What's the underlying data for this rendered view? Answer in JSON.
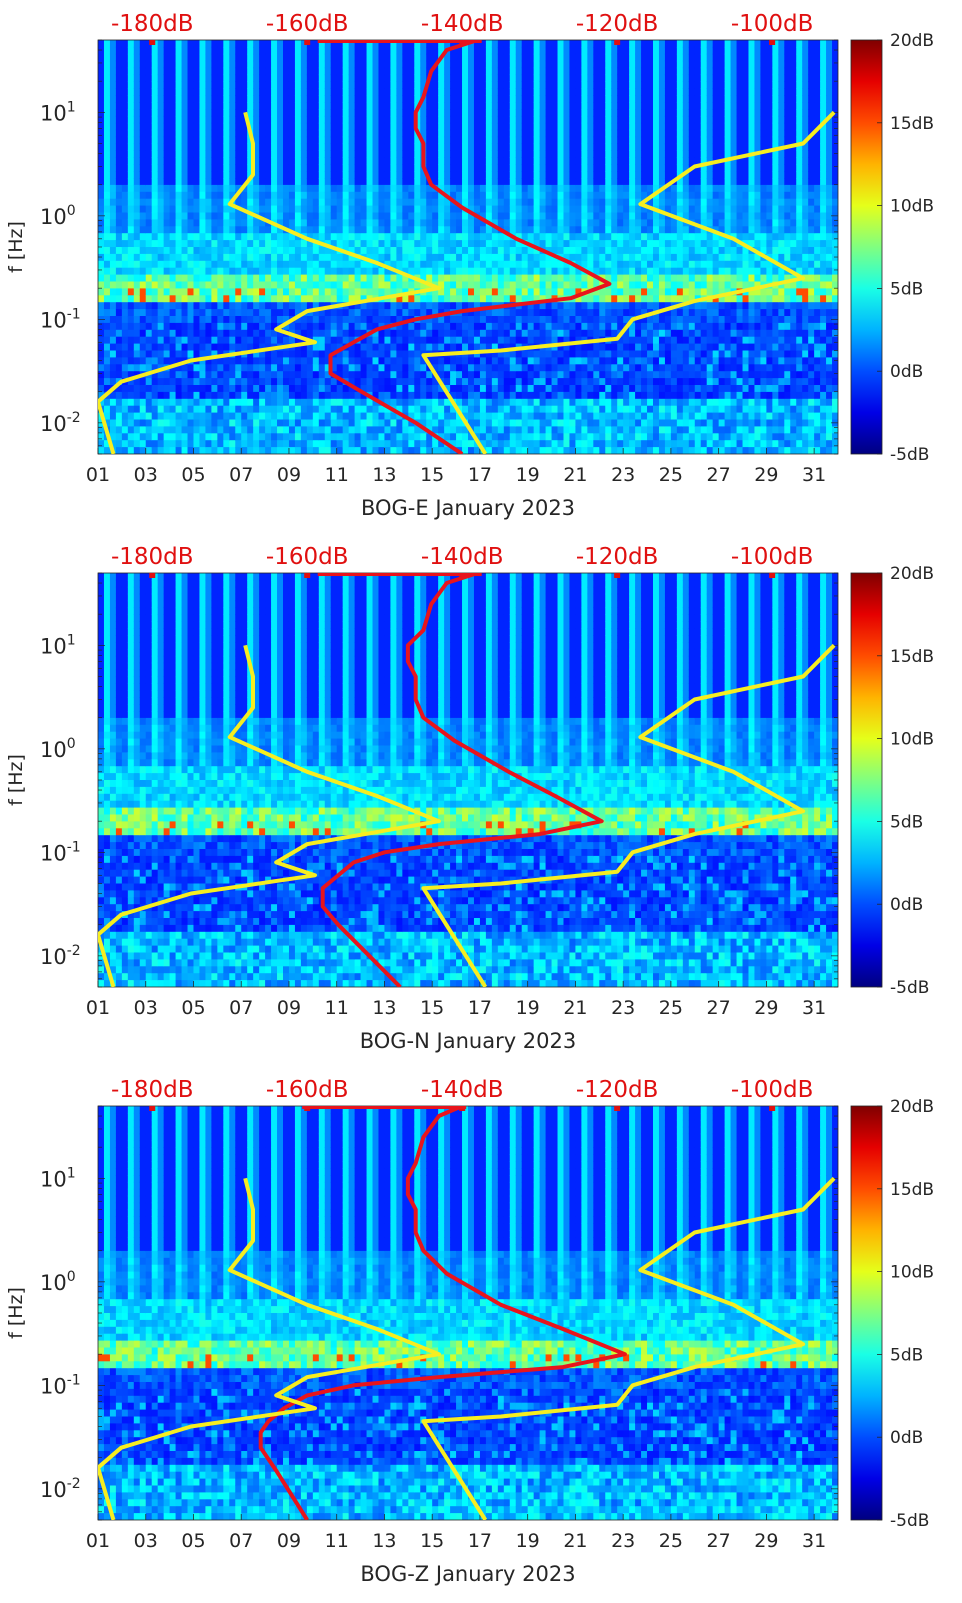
{
  "colors": {
    "red_curve": "#e8141c",
    "yellow_curve": "#f6ee21",
    "top_label": "#e01010",
    "text": "#262626",
    "axis": "#262626"
  },
  "colorbar": {
    "ticks": [
      "20dB",
      "15dB",
      "10dB",
      "5dB",
      "0dB",
      "-5dB"
    ],
    "values": [
      20,
      15,
      10,
      5,
      0,
      -5
    ],
    "range": [
      -5,
      20
    ],
    "colormap": "jet"
  },
  "top_axis": {
    "labels": [
      "-180dB",
      "-160dB",
      "-140dB",
      "-120dB",
      "-100dB"
    ],
    "values": [
      -180,
      -160,
      -140,
      -120,
      -100
    ],
    "range": [
      -187,
      -91.5
    ]
  },
  "chart_data": [
    {
      "type": "heatmap",
      "title": "",
      "xlabel": "BOG-E January 2023",
      "ylabel": "f [Hz]",
      "xlim": [
        1,
        32
      ],
      "ylim": [
        0.005,
        50
      ],
      "yscale": "log",
      "x_tick_labels": [
        "01",
        "03",
        "05",
        "07",
        "09",
        "11",
        "13",
        "15",
        "17",
        "19",
        "21",
        "23",
        "25",
        "27",
        "29",
        "31"
      ],
      "x_tick_values": [
        1,
        3,
        5,
        7,
        9,
        11,
        13,
        15,
        17,
        19,
        21,
        23,
        25,
        27,
        29,
        31
      ],
      "y_tick_labels": [
        {
          "base": "10",
          "exp": "1"
        },
        {
          "base": "10",
          "exp": "0"
        },
        {
          "base": "10",
          "exp": "-1"
        },
        {
          "base": "10",
          "exp": "-2"
        }
      ],
      "y_tick_values": [
        10,
        1,
        0.1,
        0.01
      ],
      "series": [
        {
          "name": "red-psd-curve",
          "axis": "top-dB",
          "points": [
            [
              -138,
              50
            ],
            [
              -142,
              40
            ],
            [
              -144,
              25
            ],
            [
              -145,
              14
            ],
            [
              -146,
              10
            ],
            [
              -146,
              7
            ],
            [
              -145,
              5
            ],
            [
              -145,
              3
            ],
            [
              -144,
              2
            ],
            [
              -140,
              1.2
            ],
            [
              -133,
              0.6
            ],
            [
              -126,
              0.35
            ],
            [
              -121,
              0.22
            ],
            [
              -126,
              0.16
            ],
            [
              -140,
              0.12
            ],
            [
              -146,
              0.1
            ],
            [
              -151,
              0.08
            ],
            [
              -154,
              0.06
            ],
            [
              -157,
              0.045
            ],
            [
              -157,
              0.03
            ],
            [
              -153,
              0.02
            ],
            [
              -146,
              0.01
            ],
            [
              -140,
              0.005
            ]
          ]
        },
        {
          "name": "yellow-left-curve",
          "axis": "top-dB",
          "points": [
            [
              -168,
              10
            ],
            [
              -167,
              5
            ],
            [
              -167,
              2.5
            ],
            [
              -170,
              1.3
            ],
            [
              -160,
              0.6
            ],
            [
              -151,
              0.35
            ],
            [
              -143,
              0.2
            ],
            [
              -160,
              0.12
            ],
            [
              -164,
              0.08
            ],
            [
              -159,
              0.06
            ],
            [
              -175,
              0.04
            ],
            [
              -184,
              0.025
            ],
            [
              -187,
              0.016
            ],
            [
              -185,
              0.005
            ]
          ]
        },
        {
          "name": "yellow-right-curve",
          "axis": "top-dB",
          "points": [
            [
              -92,
              10
            ],
            [
              -96,
              5
            ],
            [
              -110,
              3
            ],
            [
              -117,
              1.3
            ],
            [
              -105,
              0.6
            ],
            [
              -96,
              0.25
            ],
            [
              -110,
              0.15
            ],
            [
              -118,
              0.1
            ],
            [
              -120,
              0.065
            ],
            [
              -135,
              0.05
            ],
            [
              -145,
              0.045
            ],
            [
              -137,
              0.005
            ]
          ]
        }
      ]
    },
    {
      "type": "heatmap",
      "title": "",
      "xlabel": "BOG-N January 2023",
      "ylabel": "f [Hz]",
      "xlim": [
        1,
        32
      ],
      "ylim": [
        0.005,
        50
      ],
      "yscale": "log",
      "x_tick_labels": [
        "01",
        "03",
        "05",
        "07",
        "09",
        "11",
        "13",
        "15",
        "17",
        "19",
        "21",
        "23",
        "25",
        "27",
        "29",
        "31"
      ],
      "x_tick_values": [
        1,
        3,
        5,
        7,
        9,
        11,
        13,
        15,
        17,
        19,
        21,
        23,
        25,
        27,
        29,
        31
      ],
      "y_tick_labels": [
        {
          "base": "10",
          "exp": "1"
        },
        {
          "base": "10",
          "exp": "0"
        },
        {
          "base": "10",
          "exp": "-1"
        },
        {
          "base": "10",
          "exp": "-2"
        }
      ],
      "y_tick_values": [
        10,
        1,
        0.1,
        0.01
      ],
      "series": [
        {
          "name": "red-psd-curve",
          "axis": "top-dB",
          "points": [
            [
              -138,
              50
            ],
            [
              -142,
              40
            ],
            [
              -144,
              25
            ],
            [
              -145,
              14
            ],
            [
              -147,
              10
            ],
            [
              -147,
              7
            ],
            [
              -146,
              5
            ],
            [
              -146,
              3
            ],
            [
              -145,
              2
            ],
            [
              -141,
              1.2
            ],
            [
              -134,
              0.6
            ],
            [
              -128,
              0.35
            ],
            [
              -122,
              0.2
            ],
            [
              -130,
              0.15
            ],
            [
              -143,
              0.12
            ],
            [
              -150,
              0.1
            ],
            [
              -154,
              0.08
            ],
            [
              -156,
              0.06
            ],
            [
              -158,
              0.045
            ],
            [
              -158,
              0.03
            ],
            [
              -156,
              0.02
            ],
            [
              -152,
              0.01
            ],
            [
              -148,
              0.005
            ]
          ]
        },
        {
          "name": "yellow-left-curve",
          "axis": "top-dB",
          "points": [
            [
              -168,
              10
            ],
            [
              -167,
              5
            ],
            [
              -167,
              2.5
            ],
            [
              -170,
              1.3
            ],
            [
              -160,
              0.6
            ],
            [
              -151,
              0.35
            ],
            [
              -143,
              0.2
            ],
            [
              -160,
              0.12
            ],
            [
              -164,
              0.08
            ],
            [
              -159,
              0.06
            ],
            [
              -175,
              0.04
            ],
            [
              -184,
              0.025
            ],
            [
              -187,
              0.016
            ],
            [
              -185,
              0.005
            ]
          ]
        },
        {
          "name": "yellow-right-curve",
          "axis": "top-dB",
          "points": [
            [
              -92,
              10
            ],
            [
              -96,
              5
            ],
            [
              -110,
              3
            ],
            [
              -117,
              1.3
            ],
            [
              -105,
              0.6
            ],
            [
              -96,
              0.25
            ],
            [
              -110,
              0.15
            ],
            [
              -118,
              0.1
            ],
            [
              -120,
              0.065
            ],
            [
              -135,
              0.05
            ],
            [
              -145,
              0.045
            ],
            [
              -137,
              0.005
            ]
          ]
        }
      ]
    },
    {
      "type": "heatmap",
      "title": "",
      "xlabel": "BOG-Z January 2023",
      "ylabel": "f [Hz]",
      "xlim": [
        1,
        32
      ],
      "ylim": [
        0.005,
        50
      ],
      "yscale": "log",
      "x_tick_labels": [
        "01",
        "03",
        "05",
        "07",
        "09",
        "11",
        "13",
        "15",
        "17",
        "19",
        "21",
        "23",
        "25",
        "27",
        "29",
        "31"
      ],
      "x_tick_values": [
        1,
        3,
        5,
        7,
        9,
        11,
        13,
        15,
        17,
        19,
        21,
        23,
        25,
        27,
        29,
        31
      ],
      "y_tick_labels": [
        {
          "base": "10",
          "exp": "1"
        },
        {
          "base": "10",
          "exp": "0"
        },
        {
          "base": "10",
          "exp": "-1"
        },
        {
          "base": "10",
          "exp": "-2"
        }
      ],
      "y_tick_values": [
        10,
        1,
        0.1,
        0.01
      ],
      "series": [
        {
          "name": "red-psd-curve",
          "axis": "top-dB",
          "points": [
            [
              -140,
              50
            ],
            [
              -143,
              40
            ],
            [
              -145,
              25
            ],
            [
              -146,
              14
            ],
            [
              -147,
              10
            ],
            [
              -147,
              7
            ],
            [
              -146,
              5
            ],
            [
              -146,
              3
            ],
            [
              -145,
              2
            ],
            [
              -142,
              1.2
            ],
            [
              -135,
              0.6
            ],
            [
              -127,
              0.35
            ],
            [
              -119,
              0.2
            ],
            [
              -127,
              0.15
            ],
            [
              -143,
              0.12
            ],
            [
              -154,
              0.1
            ],
            [
              -160,
              0.08
            ],
            [
              -163,
              0.06
            ],
            [
              -165,
              0.045
            ],
            [
              -166,
              0.035
            ],
            [
              -166,
              0.025
            ],
            [
              -164,
              0.015
            ],
            [
              -160,
              0.005
            ]
          ]
        },
        {
          "name": "yellow-left-curve",
          "axis": "top-dB",
          "points": [
            [
              -168,
              10
            ],
            [
              -167,
              5
            ],
            [
              -167,
              2.5
            ],
            [
              -170,
              1.3
            ],
            [
              -160,
              0.6
            ],
            [
              -151,
              0.35
            ],
            [
              -143,
              0.2
            ],
            [
              -160,
              0.12
            ],
            [
              -164,
              0.08
            ],
            [
              -159,
              0.06
            ],
            [
              -175,
              0.04
            ],
            [
              -184,
              0.025
            ],
            [
              -187,
              0.016
            ],
            [
              -185,
              0.005
            ]
          ]
        },
        {
          "name": "yellow-right-curve",
          "axis": "top-dB",
          "points": [
            [
              -92,
              10
            ],
            [
              -96,
              5
            ],
            [
              -110,
              3
            ],
            [
              -117,
              1.3
            ],
            [
              -105,
              0.6
            ],
            [
              -96,
              0.25
            ],
            [
              -110,
              0.15
            ],
            [
              -118,
              0.1
            ],
            [
              -120,
              0.065
            ],
            [
              -135,
              0.05
            ],
            [
              -145,
              0.045
            ],
            [
              -137,
              0.005
            ]
          ]
        }
      ]
    }
  ]
}
